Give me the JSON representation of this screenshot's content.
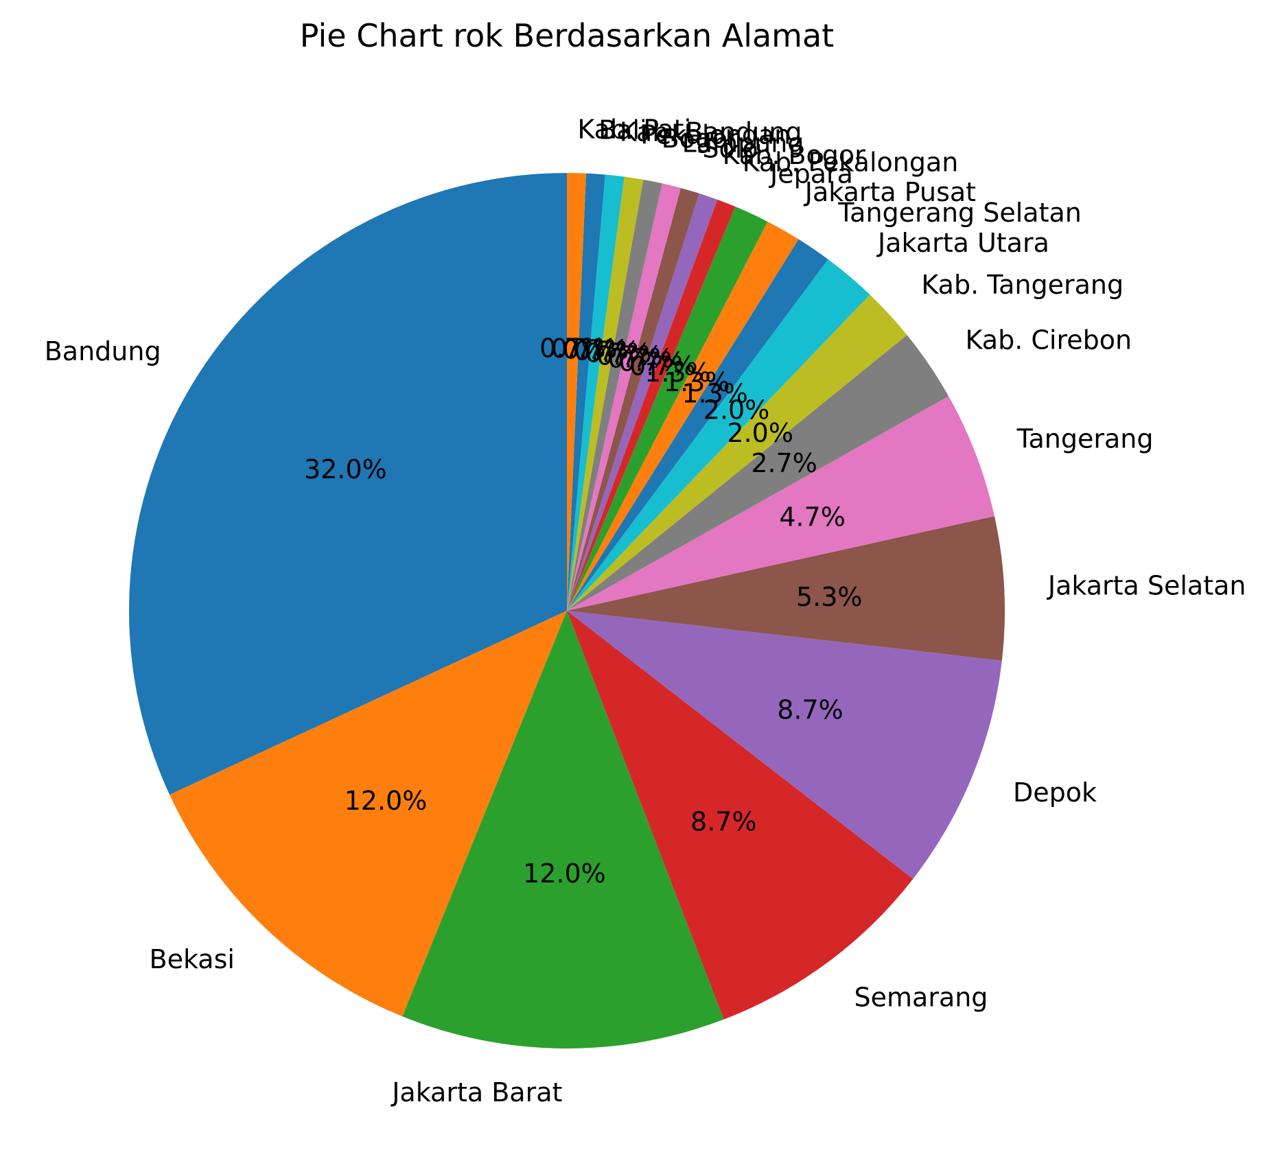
{
  "chart_data": {
    "type": "pie",
    "title": "Pie Chart rok Berdasarkan Alamat",
    "start_angle_deg": 90,
    "direction": "counterclockwise",
    "slices": [
      {
        "label": "Bandung",
        "value": 32.0,
        "pct_label": "32.0%",
        "color": "#1f77b4"
      },
      {
        "label": "Bekasi",
        "value": 12.0,
        "pct_label": "12.0%",
        "color": "#ff7f0e"
      },
      {
        "label": "Jakarta Barat",
        "value": 12.0,
        "pct_label": "12.0%",
        "color": "#2ca02c"
      },
      {
        "label": "Semarang",
        "value": 8.7,
        "pct_label": "8.7%",
        "color": "#d62728"
      },
      {
        "label": "Depok",
        "value": 8.7,
        "pct_label": "8.7%",
        "color": "#9467bd"
      },
      {
        "label": "Jakarta Selatan",
        "value": 5.3,
        "pct_label": "5.3%",
        "color": "#8c564b"
      },
      {
        "label": "Tangerang",
        "value": 4.7,
        "pct_label": "4.7%",
        "color": "#e377c2"
      },
      {
        "label": "Kab. Cirebon",
        "value": 2.7,
        "pct_label": "2.7%",
        "color": "#7f7f7f"
      },
      {
        "label": "Kab. Tangerang",
        "value": 2.0,
        "pct_label": "2.0%",
        "color": "#bcbd22"
      },
      {
        "label": "Jakarta Utara",
        "value": 2.0,
        "pct_label": "2.0%",
        "color": "#17becf"
      },
      {
        "label": "Tangerang Selatan",
        "value": 1.3,
        "pct_label": "1.3%",
        "color": "#1f77b4"
      },
      {
        "label": "Jakarta Pusat",
        "value": 1.3,
        "pct_label": "1.3%",
        "color": "#ff7f0e"
      },
      {
        "label": "Jepara",
        "value": 1.3,
        "pct_label": "1.3%",
        "color": "#2ca02c"
      },
      {
        "label": "Kab. Pekalongan",
        "value": 0.7,
        "pct_label": "0.7%",
        "color": "#d62728"
      },
      {
        "label": "Kab. Bogor",
        "value": 0.7,
        "pct_label": "0.7%",
        "color": "#9467bd"
      },
      {
        "label": "Solo",
        "value": 0.7,
        "pct_label": "0.7%",
        "color": "#8c564b"
      },
      {
        "label": "Lampung",
        "value": 0.7,
        "pct_label": "0.7%",
        "color": "#e377c2"
      },
      {
        "label": "Bogor",
        "value": 0.7,
        "pct_label": "0.7%",
        "color": "#7f7f7f"
      },
      {
        "label": "Pekalongan",
        "value": 0.7,
        "pct_label": "0.7%",
        "color": "#bcbd22"
      },
      {
        "label": "Kab. Bandung",
        "value": 0.7,
        "pct_label": "0.7%",
        "color": "#17becf"
      },
      {
        "label": "Bali",
        "value": 0.7,
        "pct_label": "0.7%",
        "color": "#1f77b4"
      },
      {
        "label": "Kab. Pati",
        "value": 0.7,
        "pct_label": "0.7%",
        "color": "#ff7f0e"
      }
    ]
  }
}
